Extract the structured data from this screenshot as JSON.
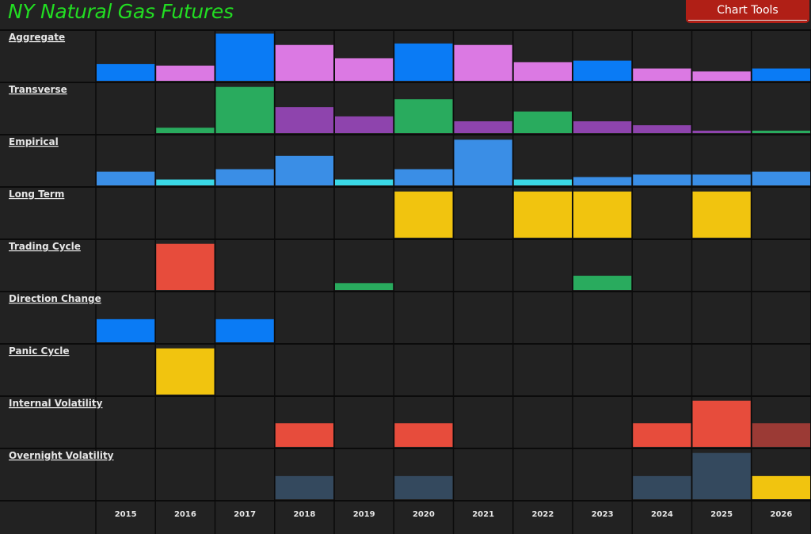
{
  "header": {
    "title": "NY Natural Gas Futures",
    "tools_label": "Chart Tools"
  },
  "colors": {
    "background": "#222222",
    "grid": "#0b0b0b",
    "title": "#22dd22",
    "button": "#b01f16"
  },
  "chart_data": {
    "type": "bar",
    "title": "NY Natural Gas Futures",
    "categories": [
      "2015",
      "2016",
      "2017",
      "2018",
      "2019",
      "2020",
      "2021",
      "2022",
      "2023",
      "2024",
      "2025",
      "2026"
    ],
    "ylim": [
      0,
      100
    ],
    "grid": true,
    "legend": "none",
    "series": [
      {
        "name": "Aggregate",
        "values": [
          34,
          31,
          96,
          73,
          46,
          76,
          73,
          38,
          41,
          25,
          19,
          25
        ],
        "colors": [
          "#0a7bf5",
          "#db79e3",
          "#0a7bf5",
          "#db79e3",
          "#db79e3",
          "#0a7bf5",
          "#db79e3",
          "#db79e3",
          "#0a7bf5",
          "#db79e3",
          "#db79e3",
          "#0a7bf5"
        ]
      },
      {
        "name": "Transverse",
        "values": [
          0,
          11,
          94,
          53,
          34,
          69,
          24,
          44,
          24,
          16,
          5,
          5
        ],
        "colors": [
          "#29ab5e",
          "#29ab5e",
          "#29ab5e",
          "#8e44ad",
          "#8e44ad",
          "#29ab5e",
          "#8e44ad",
          "#29ab5e",
          "#8e44ad",
          "#8e44ad",
          "#8e44ad",
          "#29ab5e"
        ]
      },
      {
        "name": "Empirical",
        "values": [
          28,
          12,
          33,
          60,
          12,
          33,
          93,
          12,
          17,
          22,
          22,
          28
        ],
        "colors": [
          "#3a8ee6",
          "#3ad8e6",
          "#3a8ee6",
          "#3a8ee6",
          "#3ad8e6",
          "#3a8ee6",
          "#3a8ee6",
          "#3ad8e6",
          "#3a8ee6",
          "#3a8ee6",
          "#3a8ee6",
          "#3a8ee6"
        ]
      },
      {
        "name": "Long Term",
        "values": [
          0,
          0,
          0,
          0,
          0,
          94,
          0,
          94,
          94,
          0,
          94,
          0
        ],
        "colors": [
          "#f1c40f",
          "#f1c40f",
          "#f1c40f",
          "#f1c40f",
          "#f1c40f",
          "#f1c40f",
          "#f1c40f",
          "#f1c40f",
          "#f1c40f",
          "#f1c40f",
          "#f1c40f",
          "#f1c40f"
        ]
      },
      {
        "name": "Trading Cycle",
        "values": [
          0,
          94,
          0,
          0,
          14,
          0,
          0,
          0,
          29,
          0,
          0,
          0
        ],
        "colors": [
          "#e74c3c",
          "#e74c3c",
          "#29ab5e",
          "#29ab5e",
          "#29ab5e",
          "#29ab5e",
          "#29ab5e",
          "#29ab5e",
          "#29ab5e",
          "#29ab5e",
          "#29ab5e",
          "#29ab5e"
        ]
      },
      {
        "name": "Direction Change",
        "values": [
          47,
          0,
          47,
          0,
          0,
          0,
          0,
          0,
          0,
          0,
          0,
          0
        ],
        "colors": [
          "#0a7bf5",
          "#0a7bf5",
          "#0a7bf5",
          "#0a7bf5",
          "#0a7bf5",
          "#0a7bf5",
          "#0a7bf5",
          "#0a7bf5",
          "#0a7bf5",
          "#0a7bf5",
          "#0a7bf5",
          "#0a7bf5"
        ]
      },
      {
        "name": "Panic Cycle",
        "values": [
          0,
          94,
          0,
          0,
          0,
          0,
          0,
          0,
          0,
          0,
          0,
          0
        ],
        "colors": [
          "#f1c40f",
          "#f1c40f",
          "#f1c40f",
          "#f1c40f",
          "#f1c40f",
          "#f1c40f",
          "#f1c40f",
          "#f1c40f",
          "#f1c40f",
          "#f1c40f",
          "#f1c40f",
          "#f1c40f"
        ]
      },
      {
        "name": "Internal Volatility",
        "values": [
          0,
          0,
          0,
          48,
          0,
          48,
          0,
          0,
          0,
          48,
          94,
          48
        ],
        "colors": [
          "#e74c3c",
          "#e74c3c",
          "#e74c3c",
          "#e74c3c",
          "#e74c3c",
          "#e74c3c",
          "#e74c3c",
          "#e74c3c",
          "#e74c3c",
          "#e74c3c",
          "#e74c3c",
          "#9b3a35"
        ]
      },
      {
        "name": "Overnight Volatility",
        "values": [
          0,
          0,
          0,
          47,
          0,
          47,
          0,
          0,
          0,
          47,
          94,
          47
        ],
        "colors": [
          "#34495e",
          "#34495e",
          "#34495e",
          "#34495e",
          "#34495e",
          "#34495e",
          "#34495e",
          "#34495e",
          "#34495e",
          "#34495e",
          "#34495e",
          "#f1c40f"
        ]
      }
    ]
  }
}
